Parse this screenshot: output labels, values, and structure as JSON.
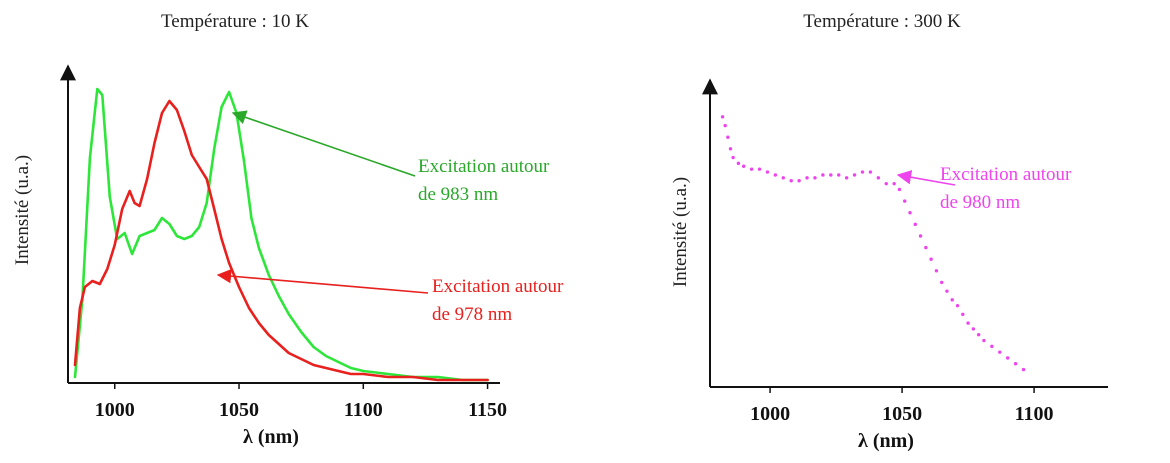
{
  "colors": {
    "green": "#2ee63a",
    "green_text": "#2aa82a",
    "red": "#e8201e",
    "magenta": "#ee44ee"
  },
  "chart_data": [
    {
      "type": "line",
      "title": "Température : 10 K",
      "xlabel": "λ (nm)",
      "ylabel": "Intensité (u.a.)",
      "xlim": [
        982,
        1155
      ],
      "ylim": [
        0,
        1.05
      ],
      "xticks": [
        1000,
        1050,
        1100,
        1150
      ],
      "grid": false,
      "series": [
        {
          "color": "green",
          "x": [
            984,
            987,
            990,
            993,
            995,
            998,
            1001,
            1004,
            1007,
            1010,
            1013,
            1016,
            1019,
            1022,
            1025,
            1028,
            1031,
            1034,
            1037,
            1040,
            1043,
            1046,
            1049,
            1052,
            1055,
            1058,
            1062,
            1066,
            1070,
            1075,
            1080,
            1085,
            1090,
            1095,
            1100,
            1110,
            1120,
            1130,
            1140,
            1150
          ],
          "y": [
            0.02,
            0.28,
            0.75,
            0.98,
            0.96,
            0.62,
            0.48,
            0.5,
            0.43,
            0.49,
            0.5,
            0.51,
            0.55,
            0.53,
            0.49,
            0.48,
            0.49,
            0.52,
            0.6,
            0.78,
            0.92,
            0.97,
            0.9,
            0.74,
            0.55,
            0.45,
            0.36,
            0.29,
            0.23,
            0.17,
            0.12,
            0.09,
            0.07,
            0.05,
            0.04,
            0.03,
            0.02,
            0.02,
            0.01,
            0.01
          ]
        },
        {
          "color": "red",
          "x": [
            984,
            986,
            988,
            991,
            994,
            997,
            1000,
            1003,
            1006,
            1008,
            1010,
            1013,
            1016,
            1019,
            1022,
            1025,
            1028,
            1031,
            1034,
            1037,
            1040,
            1043,
            1046,
            1050,
            1054,
            1058,
            1062,
            1066,
            1070,
            1075,
            1080,
            1085,
            1090,
            1095,
            1100,
            1110,
            1120,
            1130,
            1140,
            1150
          ],
          "y": [
            0.06,
            0.25,
            0.32,
            0.34,
            0.33,
            0.38,
            0.46,
            0.58,
            0.64,
            0.6,
            0.59,
            0.68,
            0.8,
            0.9,
            0.94,
            0.91,
            0.84,
            0.76,
            0.72,
            0.68,
            0.58,
            0.48,
            0.4,
            0.32,
            0.25,
            0.2,
            0.16,
            0.13,
            0.1,
            0.08,
            0.06,
            0.05,
            0.04,
            0.03,
            0.03,
            0.02,
            0.02,
            0.01,
            0.01,
            0.01
          ]
        }
      ],
      "annotations": [
        {
          "text_lines": [
            "Excitation autour",
            "de  983 nm"
          ],
          "color": "green_text",
          "arrow_to": [
            1046,
            0.9
          ]
        },
        {
          "text_lines": [
            "Excitation autour",
            "de 978 nm"
          ],
          "color": "red",
          "arrow_to": [
            1040,
            0.36
          ]
        }
      ]
    },
    {
      "type": "scatter",
      "title": "Température : 300 K",
      "xlabel": "λ (nm)",
      "ylabel": "Intensité (u.a.)",
      "xlim": [
        978,
        1128
      ],
      "ylim": [
        0,
        1.05
      ],
      "xticks": [
        1000,
        1050,
        1100
      ],
      "grid": false,
      "series": [
        {
          "color": "magenta",
          "x": [
            982,
            983,
            984,
            985,
            986,
            988,
            990,
            993,
            996,
            999,
            1002,
            1005,
            1008,
            1011,
            1014,
            1017,
            1020,
            1023,
            1026,
            1029,
            1032,
            1035,
            1038,
            1041,
            1044,
            1047,
            1049,
            1051,
            1053,
            1055,
            1057,
            1059,
            1061,
            1063,
            1065,
            1067,
            1069,
            1071,
            1073,
            1075,
            1077,
            1079,
            1081,
            1084,
            1087,
            1090,
            1093,
            1096
          ],
          "y": [
            0.93,
            0.9,
            0.86,
            0.82,
            0.79,
            0.77,
            0.76,
            0.75,
            0.75,
            0.74,
            0.73,
            0.72,
            0.71,
            0.71,
            0.72,
            0.72,
            0.73,
            0.73,
            0.73,
            0.72,
            0.73,
            0.74,
            0.74,
            0.72,
            0.7,
            0.7,
            0.68,
            0.64,
            0.6,
            0.56,
            0.52,
            0.48,
            0.44,
            0.4,
            0.36,
            0.33,
            0.3,
            0.28,
            0.25,
            0.22,
            0.2,
            0.18,
            0.16,
            0.14,
            0.12,
            0.1,
            0.08,
            0.06
          ]
        }
      ],
      "annotations": [
        {
          "text_lines": [
            "Excitation autour",
            "de 980 nm"
          ],
          "color": "magenta",
          "arrow_to": [
            1047,
            0.73
          ]
        }
      ]
    }
  ]
}
